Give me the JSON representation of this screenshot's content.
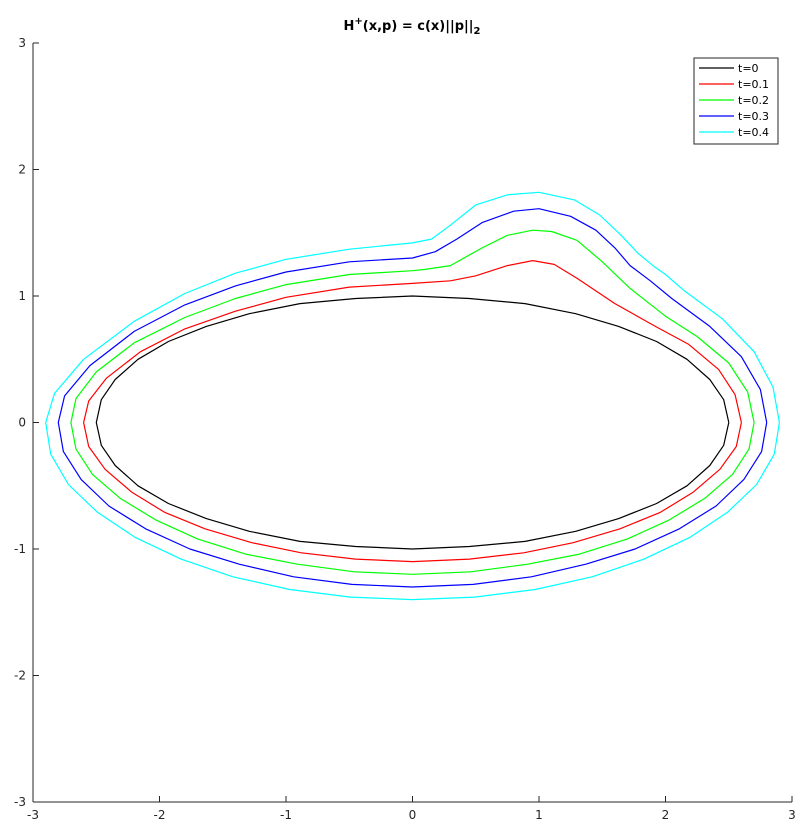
{
  "chart_data": {
    "type": "line",
    "title": {
      "main": "H",
      "sup": "+",
      "mid": "(x,p) = c(x)||p||",
      "sub": "2"
    },
    "xlabel": "",
    "ylabel": "",
    "xlim": [
      -3,
      3
    ],
    "ylim": [
      -3,
      3
    ],
    "xticks": [
      -3,
      -2,
      -1,
      0,
      1,
      2,
      3
    ],
    "yticks": [
      -3,
      -2,
      -1,
      0,
      1,
      2,
      3
    ],
    "grid": false,
    "legend_position": "top-right",
    "series": [
      {
        "name": "t=0",
        "t": 0,
        "color": "#000000",
        "points": [
          [
            2.5,
            0
          ],
          [
            2.46,
            0.18
          ],
          [
            2.35,
            0.34
          ],
          [
            2.17,
            0.5
          ],
          [
            1.93,
            0.64
          ],
          [
            1.63,
            0.76
          ],
          [
            1.29,
            0.86
          ],
          [
            0.89,
            0.94
          ],
          [
            0.45,
            0.98
          ],
          [
            0,
            1
          ],
          [
            -0.45,
            0.98
          ],
          [
            -0.89,
            0.94
          ],
          [
            -1.29,
            0.86
          ],
          [
            -1.63,
            0.76
          ],
          [
            -1.93,
            0.64
          ],
          [
            -2.17,
            0.5
          ],
          [
            -2.35,
            0.34
          ],
          [
            -2.46,
            0.18
          ],
          [
            -2.5,
            0
          ],
          [
            -2.46,
            -0.18
          ],
          [
            -2.35,
            -0.34
          ],
          [
            -2.17,
            -0.5
          ],
          [
            -1.93,
            -0.64
          ],
          [
            -1.63,
            -0.76
          ],
          [
            -1.29,
            -0.86
          ],
          [
            -0.89,
            -0.94
          ],
          [
            -0.45,
            -0.98
          ],
          [
            0,
            -1
          ],
          [
            0.45,
            -0.98
          ],
          [
            0.89,
            -0.94
          ],
          [
            1.29,
            -0.86
          ],
          [
            1.63,
            -0.76
          ],
          [
            1.93,
            -0.64
          ],
          [
            2.17,
            -0.5
          ],
          [
            2.35,
            -0.34
          ],
          [
            2.46,
            -0.18
          ],
          [
            2.5,
            0
          ]
        ]
      },
      {
        "name": "t=0.1",
        "t": 0.1,
        "color": "#ff0000",
        "points": [
          [
            2.6,
            0
          ],
          [
            2.55,
            0.22
          ],
          [
            2.42,
            0.42
          ],
          [
            2.18,
            0.62
          ],
          [
            1.92,
            0.76
          ],
          [
            1.6,
            0.94
          ],
          [
            1.3,
            1.14
          ],
          [
            1.12,
            1.25
          ],
          [
            0.95,
            1.28
          ],
          [
            0.75,
            1.24
          ],
          [
            0.5,
            1.16
          ],
          [
            0.3,
            1.12
          ],
          [
            0,
            1.1
          ],
          [
            -0.5,
            1.07
          ],
          [
            -1.0,
            0.99
          ],
          [
            -1.4,
            0.88
          ],
          [
            -1.8,
            0.74
          ],
          [
            -2.15,
            0.56
          ],
          [
            -2.42,
            0.35
          ],
          [
            -2.56,
            0.17
          ],
          [
            -2.6,
            0
          ],
          [
            -2.56,
            -0.19
          ],
          [
            -2.43,
            -0.37
          ],
          [
            -2.22,
            -0.55
          ],
          [
            -1.96,
            -0.71
          ],
          [
            -1.64,
            -0.84
          ],
          [
            -1.27,
            -0.95
          ],
          [
            -0.88,
            -1.03
          ],
          [
            -0.45,
            -1.08
          ],
          [
            0,
            -1.1
          ],
          [
            0.45,
            -1.08
          ],
          [
            0.88,
            -1.03
          ],
          [
            1.27,
            -0.95
          ],
          [
            1.64,
            -0.84
          ],
          [
            1.96,
            -0.71
          ],
          [
            2.22,
            -0.55
          ],
          [
            2.43,
            -0.37
          ],
          [
            2.56,
            -0.19
          ],
          [
            2.6,
            0
          ]
        ]
      },
      {
        "name": "t=0.2",
        "t": 0.2,
        "color": "#00ff00",
        "points": [
          [
            2.7,
            0
          ],
          [
            2.65,
            0.24
          ],
          [
            2.5,
            0.47
          ],
          [
            2.25,
            0.68
          ],
          [
            2.0,
            0.84
          ],
          [
            1.72,
            1.06
          ],
          [
            1.5,
            1.27
          ],
          [
            1.3,
            1.44
          ],
          [
            1.1,
            1.51
          ],
          [
            0.95,
            1.52
          ],
          [
            0.75,
            1.48
          ],
          [
            0.55,
            1.38
          ],
          [
            0.3,
            1.24
          ],
          [
            0.1,
            1.21
          ],
          [
            0,
            1.2
          ],
          [
            -0.5,
            1.17
          ],
          [
            -1.0,
            1.09
          ],
          [
            -1.4,
            0.98
          ],
          [
            -1.8,
            0.83
          ],
          [
            -2.2,
            0.63
          ],
          [
            -2.5,
            0.4
          ],
          [
            -2.66,
            0.19
          ],
          [
            -2.7,
            0
          ],
          [
            -2.66,
            -0.21
          ],
          [
            -2.53,
            -0.41
          ],
          [
            -2.31,
            -0.6
          ],
          [
            -2.03,
            -0.77
          ],
          [
            -1.7,
            -0.92
          ],
          [
            -1.32,
            -1.04
          ],
          [
            -0.91,
            -1.12
          ],
          [
            -0.46,
            -1.18
          ],
          [
            0,
            -1.2
          ],
          [
            0.46,
            -1.18
          ],
          [
            0.91,
            -1.12
          ],
          [
            1.32,
            -1.04
          ],
          [
            1.7,
            -0.92
          ],
          [
            2.03,
            -0.77
          ],
          [
            2.31,
            -0.6
          ],
          [
            2.53,
            -0.41
          ],
          [
            2.66,
            -0.21
          ],
          [
            2.7,
            0
          ]
        ]
      },
      {
        "name": "t=0.3",
        "t": 0.3,
        "color": "#0000ff",
        "points": [
          [
            2.8,
            0
          ],
          [
            2.75,
            0.26
          ],
          [
            2.6,
            0.52
          ],
          [
            2.35,
            0.76
          ],
          [
            2.05,
            0.98
          ],
          [
            1.88,
            1.12
          ],
          [
            1.72,
            1.24
          ],
          [
            1.6,
            1.38
          ],
          [
            1.45,
            1.52
          ],
          [
            1.25,
            1.63
          ],
          [
            1.0,
            1.69
          ],
          [
            0.8,
            1.67
          ],
          [
            0.55,
            1.58
          ],
          [
            0.35,
            1.45
          ],
          [
            0.18,
            1.35
          ],
          [
            0,
            1.3
          ],
          [
            -0.5,
            1.27
          ],
          [
            -1.0,
            1.19
          ],
          [
            -1.4,
            1.08
          ],
          [
            -1.8,
            0.93
          ],
          [
            -2.2,
            0.72
          ],
          [
            -2.55,
            0.45
          ],
          [
            -2.75,
            0.21
          ],
          [
            -2.8,
            0
          ],
          [
            -2.76,
            -0.23
          ],
          [
            -2.62,
            -0.45
          ],
          [
            -2.4,
            -0.66
          ],
          [
            -2.11,
            -0.84
          ],
          [
            -1.76,
            -1.0
          ],
          [
            -1.37,
            -1.12
          ],
          [
            -0.94,
            -1.22
          ],
          [
            -0.48,
            -1.28
          ],
          [
            0,
            -1.3
          ],
          [
            0.48,
            -1.28
          ],
          [
            0.94,
            -1.22
          ],
          [
            1.37,
            -1.12
          ],
          [
            1.76,
            -1.0
          ],
          [
            2.11,
            -0.84
          ],
          [
            2.4,
            -0.66
          ],
          [
            2.62,
            -0.45
          ],
          [
            2.76,
            -0.23
          ],
          [
            2.8,
            0
          ]
        ]
      },
      {
        "name": "t=0.4",
        "t": 0.4,
        "color": "#00ffff",
        "points": [
          [
            2.9,
            0
          ],
          [
            2.85,
            0.28
          ],
          [
            2.7,
            0.56
          ],
          [
            2.45,
            0.82
          ],
          [
            2.15,
            1.04
          ],
          [
            2.0,
            1.17
          ],
          [
            1.9,
            1.24
          ],
          [
            1.78,
            1.34
          ],
          [
            1.65,
            1.48
          ],
          [
            1.48,
            1.64
          ],
          [
            1.28,
            1.76
          ],
          [
            1.0,
            1.82
          ],
          [
            0.75,
            1.8
          ],
          [
            0.5,
            1.72
          ],
          [
            0.3,
            1.56
          ],
          [
            0.15,
            1.45
          ],
          [
            0,
            1.42
          ],
          [
            -0.2,
            1.4
          ],
          [
            -0.5,
            1.37
          ],
          [
            -1.0,
            1.29
          ],
          [
            -1.4,
            1.18
          ],
          [
            -1.8,
            1.02
          ],
          [
            -2.2,
            0.8
          ],
          [
            -2.6,
            0.5
          ],
          [
            -2.83,
            0.23
          ],
          [
            -2.9,
            0
          ],
          [
            -2.86,
            -0.25
          ],
          [
            -2.72,
            -0.49
          ],
          [
            -2.49,
            -0.71
          ],
          [
            -2.19,
            -0.91
          ],
          [
            -1.83,
            -1.08
          ],
          [
            -1.42,
            -1.22
          ],
          [
            -0.97,
            -1.32
          ],
          [
            -0.49,
            -1.38
          ],
          [
            0,
            -1.4
          ],
          [
            0.49,
            -1.38
          ],
          [
            0.97,
            -1.32
          ],
          [
            1.42,
            -1.22
          ],
          [
            1.83,
            -1.08
          ],
          [
            2.19,
            -0.91
          ],
          [
            2.49,
            -0.71
          ],
          [
            2.72,
            -0.49
          ],
          [
            2.86,
            -0.25
          ],
          [
            2.9,
            0
          ]
        ]
      }
    ]
  }
}
